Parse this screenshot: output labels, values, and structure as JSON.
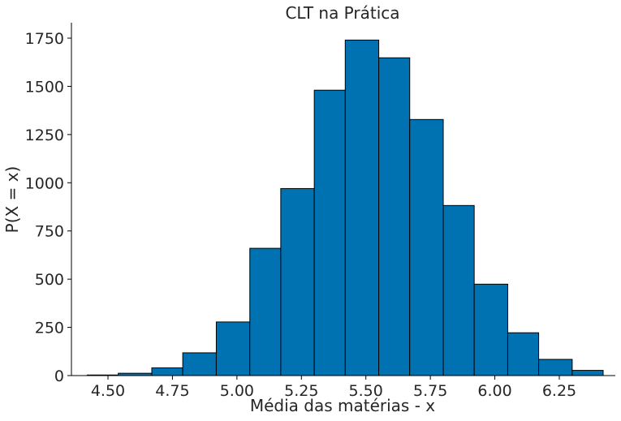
{
  "chart_data": {
    "type": "bar",
    "title": "CLT na Prática",
    "xlabel": "Média das matérias - x",
    "ylabel": "P(X = x)",
    "xlim": [
      4.36,
      6.49
    ],
    "ylim": [
      0,
      1830
    ],
    "xticks": [
      4.5,
      4.75,
      5.0,
      5.25,
      5.5,
      5.75,
      6.0,
      6.25
    ],
    "xtick_labels": [
      "4.50",
      "4.75",
      "5.00",
      "5.25",
      "5.50",
      "5.75",
      "6.00",
      "6.25"
    ],
    "yticks": [
      0,
      250,
      500,
      750,
      1000,
      1250,
      1500,
      1750
    ],
    "ytick_labels": [
      "0",
      "250",
      "500",
      "750",
      "1000",
      "1250",
      "1500",
      "1750"
    ],
    "bins": [
      {
        "x0": 4.42,
        "x1": 4.54,
        "value": 3
      },
      {
        "x0": 4.54,
        "x1": 4.67,
        "value": 12
      },
      {
        "x0": 4.67,
        "x1": 4.79,
        "value": 40
      },
      {
        "x0": 4.79,
        "x1": 4.92,
        "value": 118
      },
      {
        "x0": 4.92,
        "x1": 5.05,
        "value": 278
      },
      {
        "x0": 5.05,
        "x1": 5.17,
        "value": 660
      },
      {
        "x0": 5.17,
        "x1": 5.3,
        "value": 970
      },
      {
        "x0": 5.3,
        "x1": 5.42,
        "value": 1480
      },
      {
        "x0": 5.42,
        "x1": 5.55,
        "value": 1740
      },
      {
        "x0": 5.55,
        "x1": 5.67,
        "value": 1648
      },
      {
        "x0": 5.67,
        "x1": 5.8,
        "value": 1328
      },
      {
        "x0": 5.8,
        "x1": 5.92,
        "value": 882
      },
      {
        "x0": 5.92,
        "x1": 6.05,
        "value": 474
      },
      {
        "x0": 6.05,
        "x1": 6.17,
        "value": 222
      },
      {
        "x0": 6.17,
        "x1": 6.3,
        "value": 84
      },
      {
        "x0": 6.3,
        "x1": 6.42,
        "value": 27
      }
    ],
    "bar_color": "#0072b2",
    "edge_color": "#000000",
    "grid": false,
    "spines": [
      "left",
      "bottom"
    ]
  }
}
